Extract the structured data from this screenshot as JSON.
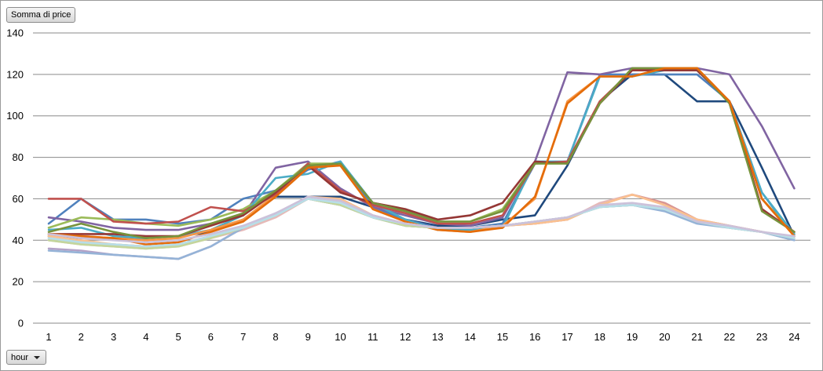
{
  "pivot": {
    "measure_label": "Somma di price",
    "axis_field_label": "hour",
    "dropdown_icon": "chevron-down-icon"
  },
  "chart_data": {
    "type": "line",
    "title": "",
    "xlabel": "",
    "ylabel": "",
    "legend": "none",
    "grid": true,
    "x": [
      1,
      2,
      3,
      4,
      5,
      6,
      7,
      8,
      9,
      10,
      11,
      12,
      13,
      14,
      15,
      16,
      17,
      18,
      19,
      20,
      21,
      22,
      23,
      24
    ],
    "ylim": [
      0,
      140
    ],
    "yticks": [
      0,
      20,
      40,
      60,
      80,
      100,
      120,
      140
    ],
    "series": [
      {
        "color": "#1F497D",
        "values": [
          42,
          41,
          41,
          41,
          42,
          44,
          50,
          61,
          61,
          61,
          56,
          50,
          47,
          47,
          50,
          52,
          76,
          107,
          120,
          120,
          107,
          107,
          75,
          42
        ]
      },
      {
        "color": "#4F81BD",
        "values": [
          48,
          60,
          50,
          50,
          48,
          50,
          60,
          64,
          74,
          78,
          56,
          50,
          46,
          46,
          48,
          77,
          78,
          120,
          120,
          120,
          120,
          107,
          63,
          42
        ]
      },
      {
        "color": "#8064A2",
        "values": [
          51,
          49,
          46,
          45,
          45,
          48,
          52,
          75,
          78,
          65,
          56,
          52,
          48,
          47,
          51,
          78,
          121,
          120,
          123,
          123,
          123,
          120,
          95,
          65
        ]
      },
      {
        "color": "#9BBB59",
        "values": [
          46,
          51,
          50,
          48,
          47,
          50,
          55,
          64,
          77,
          77,
          58,
          55,
          49,
          49,
          55,
          77,
          77,
          107,
          122,
          122,
          122,
          107,
          60,
          43
        ]
      },
      {
        "color": "#4BACC6",
        "values": [
          45,
          46,
          42,
          41,
          42,
          45,
          52,
          70,
          72,
          78,
          58,
          50,
          45,
          45,
          46,
          78,
          78,
          119,
          119,
          122,
          122,
          107,
          63,
          43
        ]
      },
      {
        "color": "#F79646",
        "values": [
          42,
          42,
          41,
          40,
          41,
          45,
          50,
          62,
          76,
          76,
          55,
          49,
          45,
          44,
          47,
          60,
          107,
          119,
          119,
          123,
          123,
          107,
          60,
          42
        ]
      },
      {
        "color": "#C0504D",
        "values": [
          60,
          60,
          49,
          48,
          49,
          56,
          54,
          62,
          77,
          64,
          57,
          53,
          48,
          48,
          52,
          77,
          78,
          107,
          122,
          122,
          122,
          107,
          55,
          44
        ]
      },
      {
        "color": "#953735",
        "values": [
          43,
          43,
          43,
          42,
          42,
          47,
          52,
          63,
          76,
          63,
          58,
          55,
          50,
          52,
          58,
          78,
          77,
          106,
          122,
          122,
          122,
          107,
          55,
          44
        ]
      },
      {
        "color": "#77933C",
        "values": [
          44,
          48,
          44,
          41,
          42,
          48,
          53,
          64,
          76,
          77,
          58,
          54,
          49,
          49,
          54,
          77,
          77,
          106,
          123,
          123,
          123,
          106,
          54,
          44
        ]
      },
      {
        "color": "#E46C0A",
        "values": [
          43,
          42,
          41,
          38,
          39,
          44,
          49,
          61,
          75,
          76,
          55,
          49,
          45,
          44,
          46,
          61,
          106,
          119,
          119,
          123,
          123,
          107,
          60,
          42
        ]
      },
      {
        "color": "#E6B9B8",
        "values": [
          40,
          38,
          37,
          36,
          37,
          41,
          45,
          51,
          60,
          59,
          52,
          48,
          46,
          46,
          47,
          48,
          50,
          58,
          62,
          58,
          50,
          47,
          44,
          41
        ]
      },
      {
        "color": "#D99694",
        "values": [
          41,
          39,
          38,
          37,
          38,
          42,
          46,
          52,
          60,
          60,
          52,
          48,
          46,
          46,
          47,
          48,
          50,
          57,
          62,
          58,
          50,
          47,
          44,
          41
        ]
      },
      {
        "color": "#FAC090",
        "values": [
          42,
          40,
          38,
          37,
          38,
          42,
          46,
          52,
          61,
          60,
          52,
          48,
          46,
          46,
          47,
          48,
          50,
          57,
          62,
          57,
          50,
          47,
          44,
          41
        ]
      },
      {
        "color": "#B3A2C7",
        "values": [
          36,
          35,
          33,
          32,
          31,
          37,
          46,
          53,
          60,
          57,
          51,
          47,
          46,
          46,
          47,
          49,
          51,
          56,
          57,
          55,
          49,
          46,
          44,
          40
        ]
      },
      {
        "color": "#95B3D7",
        "values": [
          35,
          34,
          33,
          32,
          31,
          37,
          46,
          53,
          60,
          57,
          51,
          47,
          46,
          46,
          47,
          49,
          51,
          56,
          57,
          54,
          48,
          46,
          44,
          40
        ]
      },
      {
        "color": "#C3D69B",
        "values": [
          40,
          38,
          37,
          36,
          37,
          41,
          46,
          52,
          60,
          57,
          51,
          47,
          46,
          46,
          47,
          49,
          51,
          56,
          57,
          55,
          49,
          46,
          44,
          41
        ]
      },
      {
        "color": "#B7DEE8",
        "values": [
          41,
          39,
          38,
          37,
          38,
          42,
          46,
          52,
          60,
          58,
          51,
          48,
          46,
          46,
          47,
          49,
          51,
          56,
          57,
          55,
          49,
          46,
          44,
          41
        ]
      },
      {
        "color": "#CCC1DA",
        "values": [
          43,
          41,
          40,
          39,
          40,
          43,
          47,
          53,
          61,
          59,
          52,
          48,
          46,
          46,
          47,
          49,
          51,
          57,
          58,
          56,
          49,
          47,
          44,
          42
        ]
      }
    ]
  }
}
